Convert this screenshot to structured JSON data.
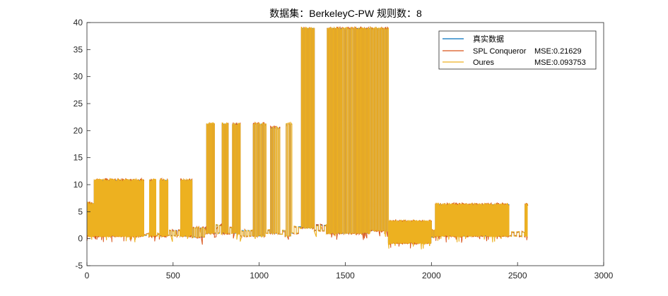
{
  "chart_data": {
    "type": "line",
    "title": "数据集：BerkeleyC-PW  规则数：8",
    "xlabel": "",
    "ylabel": "",
    "xlim": [
      0,
      3000
    ],
    "ylim": [
      -5,
      40
    ],
    "xticks": [
      0,
      500,
      1000,
      1500,
      2000,
      2500,
      3000
    ],
    "yticks": [
      -5,
      0,
      5,
      10,
      15,
      20,
      25,
      30,
      35,
      40
    ],
    "grid": false,
    "legend_position": "top-right",
    "n_points": 2560,
    "segments": [
      {
        "x_start": 0,
        "x_end": 40,
        "low": 0.5,
        "high": 6.5,
        "toggles": 10
      },
      {
        "x_start": 40,
        "x_end": 330,
        "low": 0.5,
        "high": 10.8,
        "toggles": 130
      },
      {
        "x_start": 330,
        "x_end": 360,
        "low": 0.6,
        "high": 0.9,
        "toggles": 2
      },
      {
        "x_start": 360,
        "x_end": 400,
        "low": 0.5,
        "high": 10.8,
        "toggles": 12
      },
      {
        "x_start": 400,
        "x_end": 420,
        "low": 0.6,
        "high": 0.9,
        "toggles": 2
      },
      {
        "x_start": 420,
        "x_end": 470,
        "low": 0.5,
        "high": 10.8,
        "toggles": 14
      },
      {
        "x_start": 470,
        "x_end": 540,
        "low": 0.6,
        "high": 1.5,
        "toggles": 8
      },
      {
        "x_start": 540,
        "x_end": 610,
        "low": 0.5,
        "high": 10.8,
        "toggles": 16
      },
      {
        "x_start": 610,
        "x_end": 690,
        "low": 0.3,
        "high": 2.0,
        "toggles": 12
      },
      {
        "x_start": 690,
        "x_end": 740,
        "low": 1.0,
        "high": 21.2,
        "toggles": 10
      },
      {
        "x_start": 740,
        "x_end": 780,
        "low": 1.0,
        "high": 2.5,
        "toggles": 4
      },
      {
        "x_start": 780,
        "x_end": 820,
        "low": 1.0,
        "high": 21.2,
        "toggles": 8
      },
      {
        "x_start": 820,
        "x_end": 840,
        "low": 1.0,
        "high": 2.0,
        "toggles": 2
      },
      {
        "x_start": 840,
        "x_end": 890,
        "low": 1.0,
        "high": 21.2,
        "toggles": 10
      },
      {
        "x_start": 890,
        "x_end": 960,
        "low": 0.5,
        "high": 1.5,
        "toggles": 8
      },
      {
        "x_start": 960,
        "x_end": 1040,
        "low": 0.5,
        "high": 21.2,
        "toggles": 14
      },
      {
        "x_start": 1040,
        "x_end": 1060,
        "low": 1.0,
        "high": 1.5,
        "toggles": 2
      },
      {
        "x_start": 1060,
        "x_end": 1120,
        "low": 1.0,
        "high": 20.5,
        "toggles": 10
      },
      {
        "x_start": 1120,
        "x_end": 1150,
        "low": 0.8,
        "high": 1.5,
        "toggles": 2
      },
      {
        "x_start": 1150,
        "x_end": 1190,
        "low": 0.5,
        "high": 21.2,
        "toggles": 6
      },
      {
        "x_start": 1190,
        "x_end": 1240,
        "low": 1.0,
        "high": 2.2,
        "toggles": 4
      },
      {
        "x_start": 1240,
        "x_end": 1320,
        "low": 2.0,
        "high": 38.9,
        "toggles": 16
      },
      {
        "x_start": 1320,
        "x_end": 1390,
        "low": 1.5,
        "high": 2.5,
        "toggles": 6
      },
      {
        "x_start": 1390,
        "x_end": 1480,
        "low": 1.0,
        "high": 38.9,
        "toggles": 18
      },
      {
        "x_start": 1480,
        "x_end": 1560,
        "low": 1.0,
        "high": 38.9,
        "toggles": 14
      },
      {
        "x_start": 1560,
        "x_end": 1640,
        "low": 1.0,
        "high": 38.9,
        "toggles": 16
      },
      {
        "x_start": 1640,
        "x_end": 1750,
        "low": 1.5,
        "high": 38.9,
        "toggles": 20
      },
      {
        "x_start": 1750,
        "x_end": 2000,
        "low": -0.8,
        "high": 3.2,
        "toggles": 90
      },
      {
        "x_start": 2000,
        "x_end": 2020,
        "low": 0.3,
        "high": 1.5,
        "toggles": 4
      },
      {
        "x_start": 2020,
        "x_end": 2450,
        "low": 0.5,
        "high": 6.3,
        "toggles": 150
      },
      {
        "x_start": 2450,
        "x_end": 2540,
        "low": 0.5,
        "high": 1.2,
        "toggles": 6
      },
      {
        "x_start": 2540,
        "x_end": 2560,
        "low": 0.5,
        "high": 6.3,
        "toggles": 6
      }
    ],
    "series": [
      {
        "name": "真实数据",
        "color": "#0072BD",
        "mse": ""
      },
      {
        "name": "SPL Conqueror",
        "color": "#D95319",
        "mse": "MSE:0.21629"
      },
      {
        "name": "Oures",
        "color": "#EDB120",
        "mse": "MSE:0.093753"
      }
    ]
  }
}
